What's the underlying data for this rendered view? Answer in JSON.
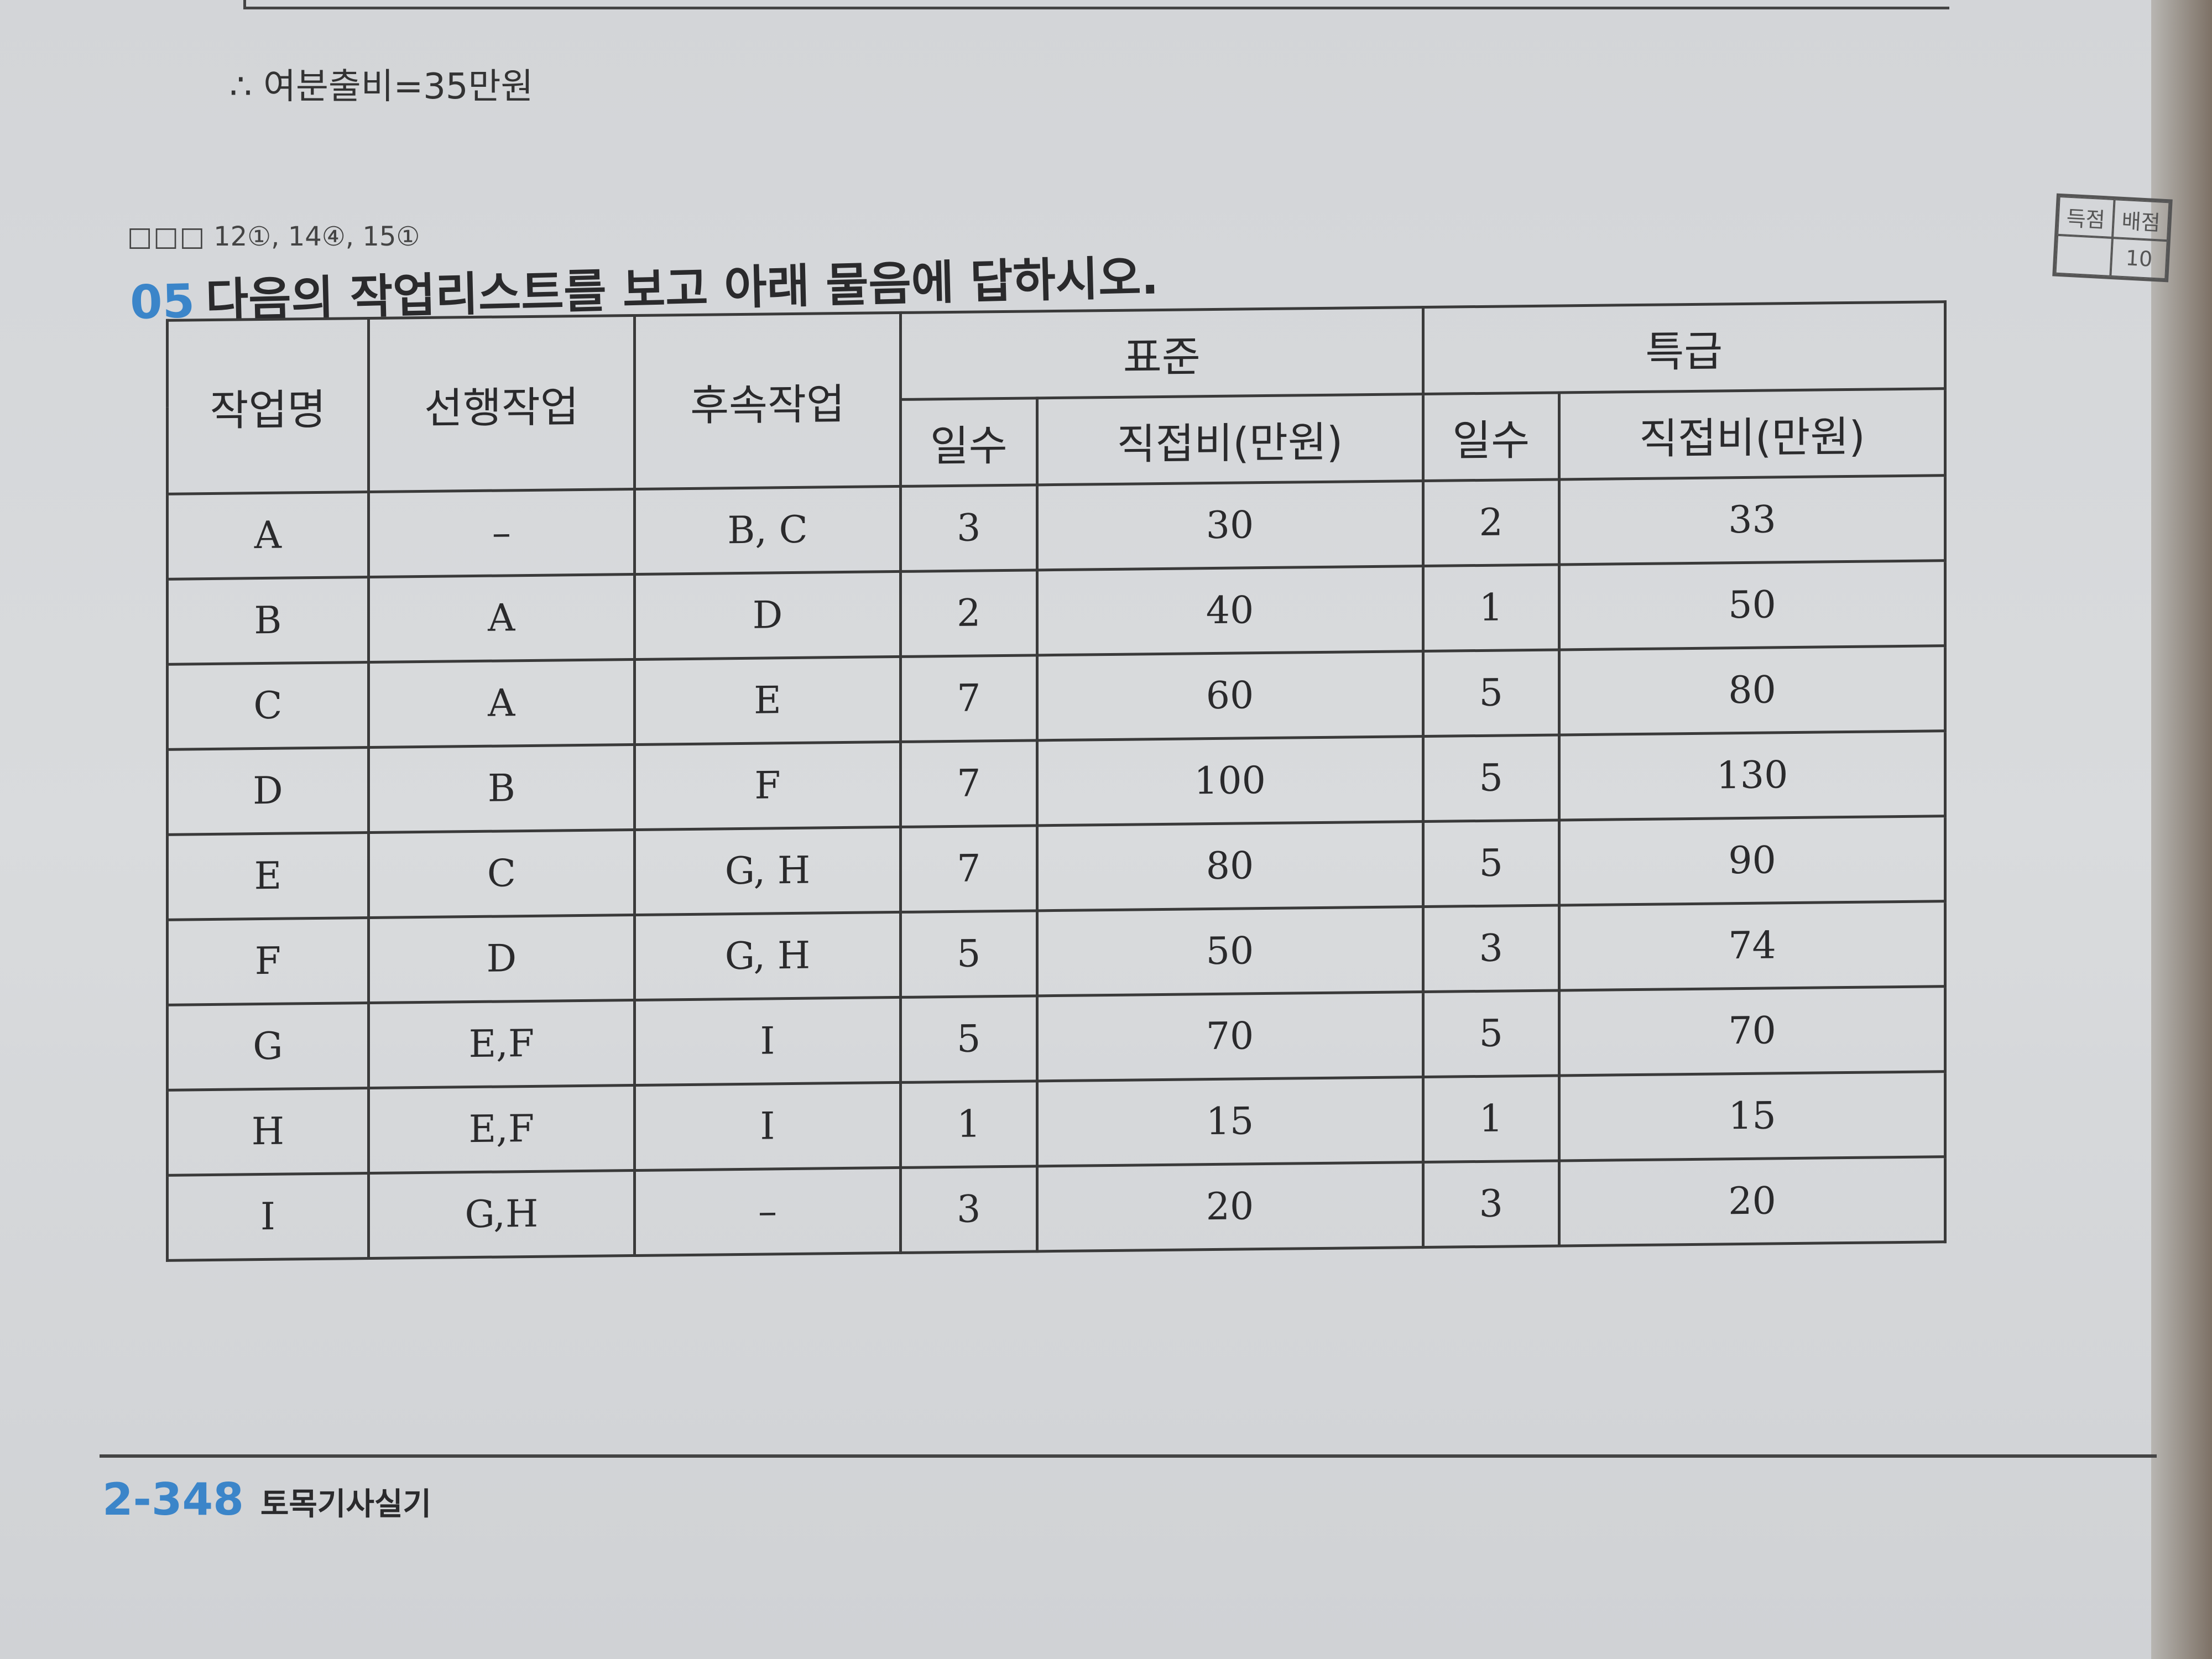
{
  "conclusion": "∴ 여분출비=35만원",
  "question": {
    "boxes": "□□□",
    "years": "12①, 14④, 15①",
    "number": "05",
    "text": "다음의 작업리스트를 보고 아래 물음에 답하시오."
  },
  "score_box": {
    "obtained_label": "득점",
    "points_label": "배점",
    "points": "10"
  },
  "table": {
    "headers": {
      "task": "작업명",
      "predecessor": "선행작업",
      "successor": "후속작업",
      "standard": "표준",
      "crash": "특급",
      "days": "일수",
      "cost": "직접비(만원)"
    },
    "rows": [
      [
        "A",
        "–",
        "B, C",
        "3",
        "30",
        "2",
        "33"
      ],
      [
        "B",
        "A",
        "D",
        "2",
        "40",
        "1",
        "50"
      ],
      [
        "C",
        "A",
        "E",
        "7",
        "60",
        "5",
        "80"
      ],
      [
        "D",
        "B",
        "F",
        "7",
        "100",
        "5",
        "130"
      ],
      [
        "E",
        "C",
        "G, H",
        "7",
        "80",
        "5",
        "90"
      ],
      [
        "F",
        "D",
        "G, H",
        "5",
        "50",
        "3",
        "74"
      ],
      [
        "G",
        "E,F",
        "I",
        "5",
        "70",
        "5",
        "70"
      ],
      [
        "H",
        "E,F",
        "I",
        "1",
        "15",
        "1",
        "15"
      ],
      [
        "I",
        "G,H",
        "–",
        "3",
        "20",
        "3",
        "20"
      ]
    ]
  },
  "footer": {
    "page": "2-348",
    "book": "토목기사실기"
  }
}
